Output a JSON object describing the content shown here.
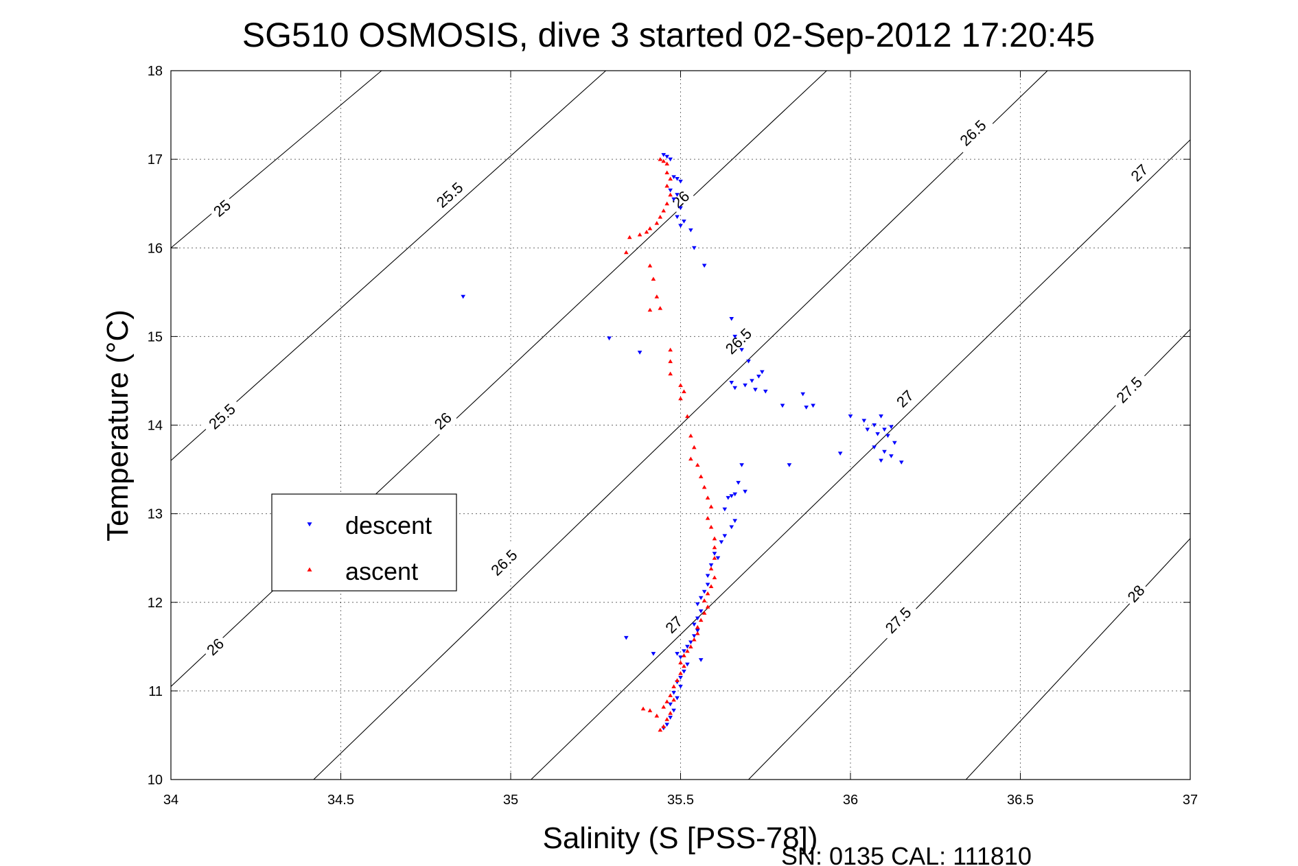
{
  "chart_data": {
    "type": "scatter",
    "title": "SG510 OSMOSIS, dive 3 started 02-Sep-2012 17:20:45",
    "xlabel": "Salinity (S [PSS-78])",
    "ylabel": "Temperature (°C)",
    "footer": "SN: 0135  CAL: 111810",
    "xlim": [
      34,
      37
    ],
    "ylim": [
      10,
      18
    ],
    "x_ticks": [
      34,
      34.5,
      35,
      35.5,
      36,
      36.5,
      37
    ],
    "x_tick_labels": [
      "34",
      "34.5",
      "35",
      "35.5",
      "36",
      "36.5",
      "37"
    ],
    "y_ticks": [
      10,
      11,
      12,
      13,
      14,
      15,
      16,
      17,
      18
    ],
    "y_tick_labels": [
      "10",
      "11",
      "12",
      "13",
      "14",
      "15",
      "16",
      "17",
      "18"
    ],
    "grid": true,
    "legend_position": "left-center",
    "density_contours": [
      {
        "points": [
          [
            34,
            16.0
          ],
          [
            34.62,
            18.0
          ]
        ],
        "labels": [
          {
            "text": "25",
            "s": 34.15,
            "t": 16.45
          }
        ]
      },
      {
        "points": [
          [
            34,
            13.6
          ],
          [
            35.28,
            18.0
          ]
        ],
        "labels": [
          {
            "text": "25.5",
            "s": 34.15,
            "t": 14.1
          },
          {
            "text": "25.5",
            "s": 34.82,
            "t": 16.6
          }
        ]
      },
      {
        "points": [
          [
            34,
            11.05
          ],
          [
            35.93,
            18.0
          ]
        ],
        "labels": [
          {
            "text": "26",
            "s": 34.13,
            "t": 11.5
          },
          {
            "text": "26",
            "s": 34.8,
            "t": 14.05
          },
          {
            "text": "26",
            "s": 35.5,
            "t": 16.55
          }
        ]
      },
      {
        "points": [
          [
            34.42,
            10.0
          ],
          [
            36.58,
            18.0
          ]
        ],
        "labels": [
          {
            "text": "26.5",
            "s": 34.98,
            "t": 12.45
          },
          {
            "text": "26.5",
            "s": 35.67,
            "t": 14.95
          },
          {
            "text": "26.5",
            "s": 36.36,
            "t": 17.3
          }
        ]
      },
      {
        "points": [
          [
            35.06,
            10.0
          ],
          [
            37.0,
            17.22
          ]
        ],
        "labels": [
          {
            "text": "27",
            "s": 35.48,
            "t": 11.75
          },
          {
            "text": "27",
            "s": 36.16,
            "t": 14.3
          },
          {
            "text": "27",
            "s": 36.85,
            "t": 16.85
          }
        ]
      },
      {
        "points": [
          [
            35.7,
            10.0
          ],
          [
            37.0,
            15.08
          ]
        ],
        "labels": [
          {
            "text": "27.5",
            "s": 36.14,
            "t": 11.8
          },
          {
            "text": "27.5",
            "s": 36.82,
            "t": 14.4
          }
        ]
      },
      {
        "points": [
          [
            36.34,
            10.0
          ],
          [
            37.0,
            12.72
          ]
        ],
        "labels": [
          {
            "text": "28",
            "s": 36.84,
            "t": 12.1
          }
        ]
      }
    ],
    "series": [
      {
        "name": "descent",
        "color": "#0000ff",
        "marker": "triangle-down",
        "points": [
          [
            35.45,
            17.05
          ],
          [
            35.46,
            17.03
          ],
          [
            35.47,
            17.0
          ],
          [
            35.48,
            16.8
          ],
          [
            35.49,
            16.78
          ],
          [
            35.5,
            16.75
          ],
          [
            35.47,
            16.65
          ],
          [
            35.49,
            16.6
          ],
          [
            35.48,
            16.55
          ],
          [
            35.5,
            16.45
          ],
          [
            35.49,
            16.35
          ],
          [
            35.51,
            16.3
          ],
          [
            35.5,
            16.25
          ],
          [
            35.53,
            16.2
          ],
          [
            35.54,
            16.0
          ],
          [
            35.57,
            15.8
          ],
          [
            34.86,
            15.45
          ],
          [
            35.29,
            14.98
          ],
          [
            35.38,
            14.82
          ],
          [
            35.65,
            15.2
          ],
          [
            35.66,
            15.0
          ],
          [
            35.68,
            14.85
          ],
          [
            35.7,
            14.72
          ],
          [
            35.73,
            14.55
          ],
          [
            35.74,
            14.6
          ],
          [
            35.65,
            14.48
          ],
          [
            35.66,
            14.42
          ],
          [
            35.69,
            14.45
          ],
          [
            35.71,
            14.5
          ],
          [
            35.72,
            14.4
          ],
          [
            35.75,
            14.38
          ],
          [
            35.8,
            14.22
          ],
          [
            35.86,
            14.35
          ],
          [
            35.87,
            14.2
          ],
          [
            35.89,
            14.22
          ],
          [
            36.0,
            14.1
          ],
          [
            36.04,
            14.05
          ],
          [
            36.07,
            14.0
          ],
          [
            36.09,
            14.1
          ],
          [
            36.05,
            13.95
          ],
          [
            36.08,
            13.9
          ],
          [
            36.1,
            13.95
          ],
          [
            36.12,
            13.98
          ],
          [
            36.11,
            13.88
          ],
          [
            36.13,
            13.8
          ],
          [
            36.07,
            13.75
          ],
          [
            36.1,
            13.7
          ],
          [
            36.12,
            13.65
          ],
          [
            36.09,
            13.6
          ],
          [
            36.15,
            13.58
          ],
          [
            35.82,
            13.55
          ],
          [
            35.97,
            13.68
          ],
          [
            35.68,
            13.55
          ],
          [
            35.67,
            13.35
          ],
          [
            35.69,
            13.25
          ],
          [
            35.66,
            13.22
          ],
          [
            35.65,
            13.2
          ],
          [
            35.64,
            13.18
          ],
          [
            35.63,
            13.05
          ],
          [
            35.66,
            12.92
          ],
          [
            35.65,
            12.85
          ],
          [
            35.63,
            12.75
          ],
          [
            35.62,
            12.68
          ],
          [
            35.6,
            12.55
          ],
          [
            35.61,
            12.5
          ],
          [
            35.59,
            12.42
          ],
          [
            35.58,
            12.3
          ],
          [
            35.58,
            12.2
          ],
          [
            35.57,
            12.12
          ],
          [
            35.56,
            12.05
          ],
          [
            35.55,
            11.98
          ],
          [
            35.56,
            11.9
          ],
          [
            35.55,
            11.82
          ],
          [
            35.54,
            11.75
          ],
          [
            35.55,
            11.68
          ],
          [
            35.54,
            11.62
          ],
          [
            35.53,
            11.55
          ],
          [
            35.52,
            11.5
          ],
          [
            35.51,
            11.45
          ],
          [
            35.49,
            11.42
          ],
          [
            35.5,
            11.38
          ],
          [
            35.56,
            11.35
          ],
          [
            35.52,
            11.3
          ],
          [
            35.51,
            11.22
          ],
          [
            35.5,
            11.15
          ],
          [
            35.49,
            11.1
          ],
          [
            35.5,
            11.05
          ],
          [
            35.48,
            10.98
          ],
          [
            35.49,
            10.92
          ],
          [
            35.47,
            10.85
          ],
          [
            35.48,
            10.78
          ],
          [
            35.47,
            10.7
          ],
          [
            35.46,
            10.62
          ],
          [
            35.45,
            10.58
          ],
          [
            35.34,
            11.6
          ],
          [
            35.42,
            11.42
          ]
        ]
      },
      {
        "name": "ascent",
        "color": "#ff0000",
        "marker": "triangle-up",
        "points": [
          [
            35.44,
            17.0
          ],
          [
            35.45,
            16.98
          ],
          [
            35.46,
            16.95
          ],
          [
            35.46,
            16.85
          ],
          [
            35.47,
            16.78
          ],
          [
            35.46,
            16.7
          ],
          [
            35.47,
            16.6
          ],
          [
            35.46,
            16.5
          ],
          [
            35.45,
            16.42
          ],
          [
            35.44,
            16.35
          ],
          [
            35.43,
            16.28
          ],
          [
            35.41,
            16.22
          ],
          [
            35.4,
            16.18
          ],
          [
            35.38,
            16.15
          ],
          [
            35.35,
            16.12
          ],
          [
            35.34,
            15.95
          ],
          [
            35.41,
            15.8
          ],
          [
            35.42,
            15.65
          ],
          [
            35.43,
            15.45
          ],
          [
            35.41,
            15.3
          ],
          [
            35.44,
            15.32
          ],
          [
            35.47,
            14.85
          ],
          [
            35.47,
            14.72
          ],
          [
            35.47,
            14.58
          ],
          [
            35.5,
            14.45
          ],
          [
            35.51,
            14.38
          ],
          [
            35.5,
            14.3
          ],
          [
            35.52,
            14.1
          ],
          [
            35.53,
            13.88
          ],
          [
            35.54,
            13.75
          ],
          [
            35.53,
            13.62
          ],
          [
            35.55,
            13.55
          ],
          [
            35.56,
            13.42
          ],
          [
            35.57,
            13.3
          ],
          [
            35.58,
            13.18
          ],
          [
            35.59,
            13.08
          ],
          [
            35.58,
            12.95
          ],
          [
            35.59,
            12.85
          ],
          [
            35.6,
            12.72
          ],
          [
            35.6,
            12.62
          ],
          [
            35.6,
            12.5
          ],
          [
            35.59,
            12.38
          ],
          [
            35.6,
            12.28
          ],
          [
            35.59,
            12.18
          ],
          [
            35.58,
            12.1
          ],
          [
            35.57,
            12.02
          ],
          [
            35.58,
            11.95
          ],
          [
            35.57,
            11.88
          ],
          [
            35.56,
            11.8
          ],
          [
            35.55,
            11.72
          ],
          [
            35.55,
            11.65
          ],
          [
            35.54,
            11.58
          ],
          [
            35.53,
            11.5
          ],
          [
            35.52,
            11.45
          ],
          [
            35.51,
            11.4
          ],
          [
            35.5,
            11.32
          ],
          [
            35.51,
            11.28
          ],
          [
            35.5,
            11.2
          ],
          [
            35.49,
            11.12
          ],
          [
            35.48,
            11.05
          ],
          [
            35.47,
            10.95
          ],
          [
            35.46,
            10.88
          ],
          [
            35.48,
            10.9
          ],
          [
            35.45,
            10.82
          ],
          [
            35.47,
            10.75
          ],
          [
            35.46,
            10.68
          ],
          [
            35.45,
            10.6
          ],
          [
            35.44,
            10.56
          ],
          [
            35.39,
            10.8
          ],
          [
            35.41,
            10.78
          ],
          [
            35.43,
            10.72
          ]
        ]
      }
    ]
  }
}
